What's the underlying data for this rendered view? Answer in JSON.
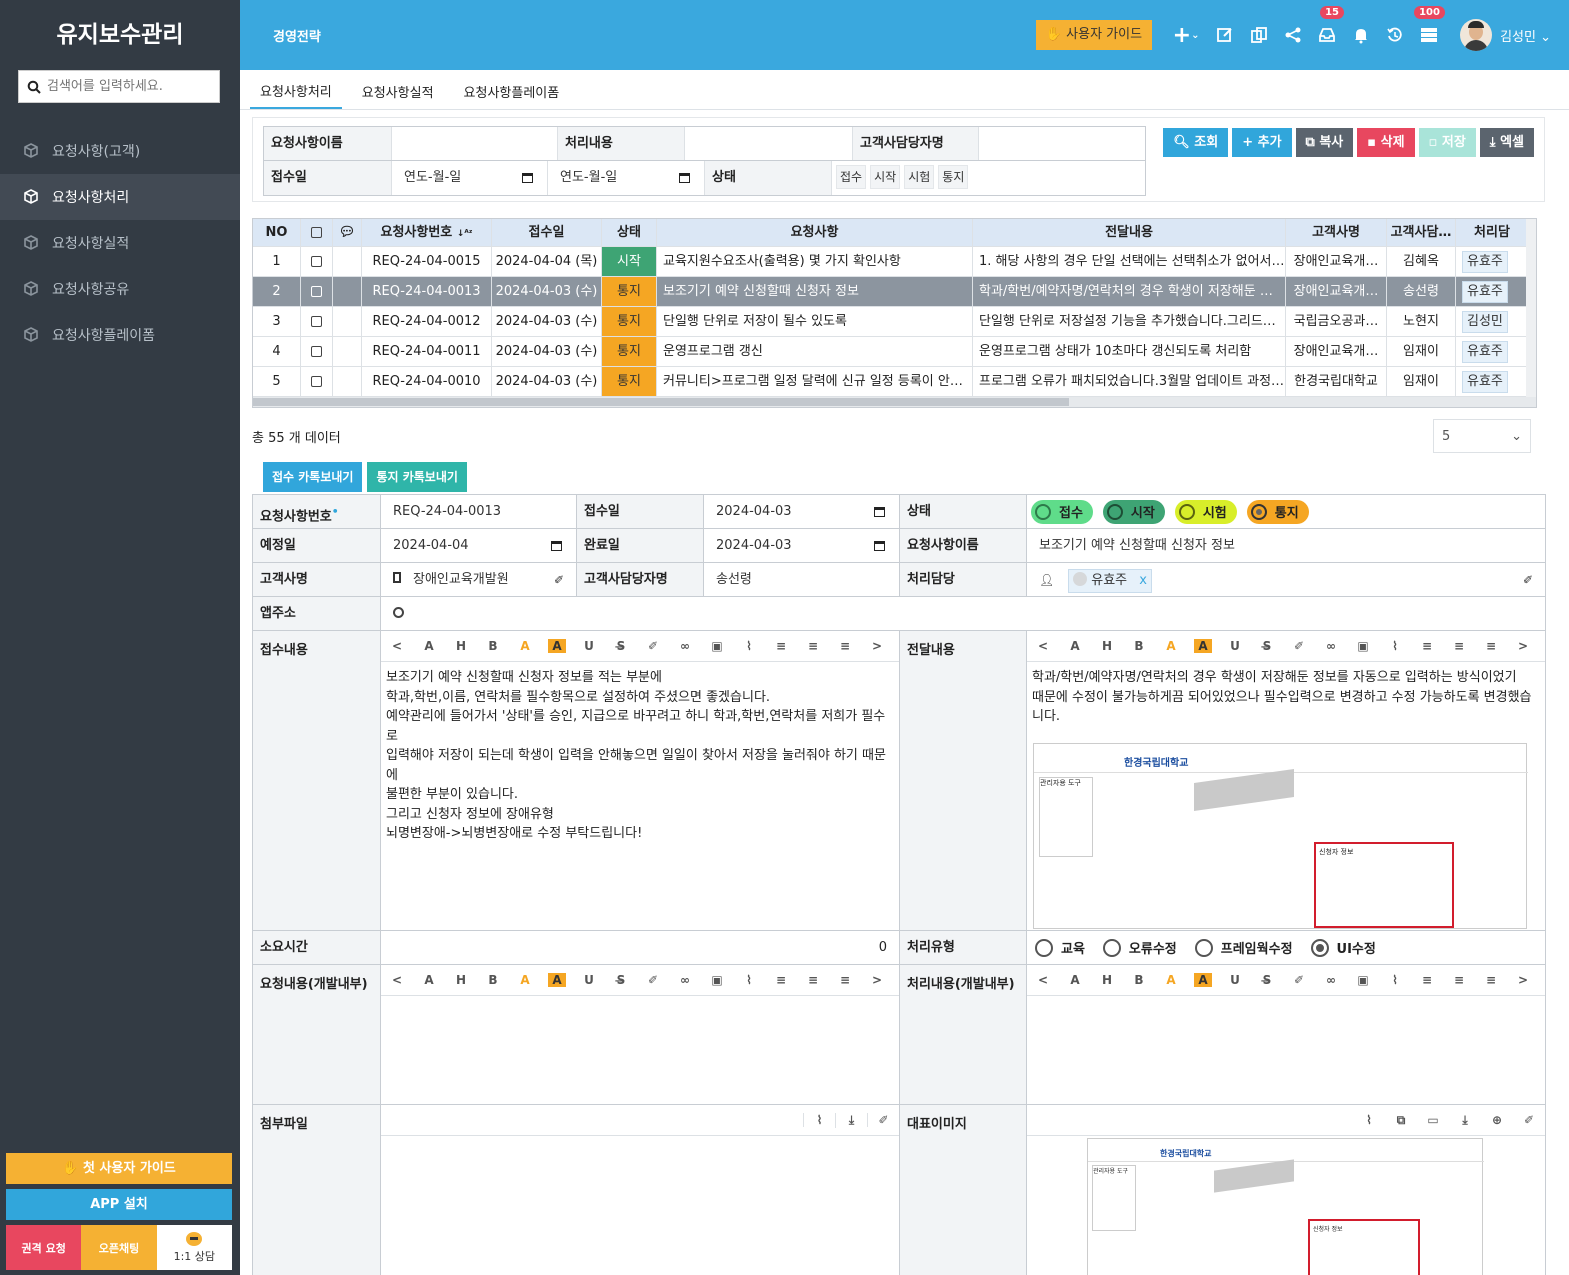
{
  "brand": "유지보수관리",
  "search": {
    "placeholder": "검색어를 입력하세요."
  },
  "menu": [
    "요청사항(고객)",
    "요청사항처리",
    "요청사항실적",
    "요청사항공유",
    "요청사항플레이폼"
  ],
  "sidebar_bottom": {
    "guide": "첫 사용자 가이드",
    "app": "APP 설치",
    "auth": "권격 요청",
    "open": "오픈채팅",
    "chat": "1:1 상담"
  },
  "header": {
    "title": "경영전략",
    "guide": "사용자 가이드",
    "badge_inbox": "15",
    "badge_list": "100",
    "user": "김성민"
  },
  "tabs": [
    "요청사항처리",
    "요청사항실적",
    "요청사항플레이폼"
  ],
  "filter": {
    "l_name": "요청사항이름",
    "l_content": "처리내용",
    "l_manager": "고객사담당자명",
    "l_date": "접수일",
    "date_ph": "연도-월-일",
    "l_status": "상태",
    "statuses": [
      "접수",
      "시작",
      "시험",
      "통지"
    ]
  },
  "buttons": {
    "search": "조회",
    "add": "추가",
    "copy": "복사",
    "delete": "삭제",
    "save": "저장",
    "excel": "엑셀"
  },
  "grid": {
    "headers": [
      "NO",
      "",
      "",
      "요청사항번호",
      "접수일",
      "상태",
      "요청사항",
      "전달내용",
      "고객사명",
      "고객사담…",
      "처리담"
    ],
    "rows": [
      {
        "no": "1",
        "id": "REQ-24-04-0015",
        "date": "2024-04-04 (목)",
        "status": "시작",
        "req": "교육지원수요조사(출력용) 몇 가지 확인사항",
        "msg": "1. 해당 사항의 경우 단일 선택에는 선택취소가 없어서…",
        "cust": "장애인교육개…",
        "mgr": "김혜옥",
        "worker": "유효주"
      },
      {
        "no": "2",
        "id": "REQ-24-04-0013",
        "date": "2024-04-03 (수)",
        "status": "통지",
        "req": "보조기기 예약 신청할때 신청자 정보",
        "msg": "학과/학번/예약자명/연락처의 경우 학생이 저장해둔 …",
        "cust": "장애인교육개…",
        "mgr": "송선령",
        "worker": "유효주"
      },
      {
        "no": "3",
        "id": "REQ-24-04-0012",
        "date": "2024-04-03 (수)",
        "status": "통지",
        "req": "단일행 단위로 저장이 될수 있도록",
        "msg": "단일행 단위로 저장설정 기능을 추가했습니다.그리드…",
        "cust": "국립금오공과…",
        "mgr": "노현지",
        "worker": "김성민"
      },
      {
        "no": "4",
        "id": "REQ-24-04-0011",
        "date": "2024-04-03 (수)",
        "status": "통지",
        "req": "운영프로그램 갱신",
        "msg": "운영프로그램 상태가 10초마다 갱신되도록 처리함",
        "cust": "장애인교육개…",
        "mgr": "임재이",
        "worker": "유효주"
      },
      {
        "no": "5",
        "id": "REQ-24-04-0010",
        "date": "2024-04-03 (수)",
        "status": "통지",
        "req": "커뮤니티>프로그램 일정 달력에 신규 일정 등록이 안…",
        "msg": "프로그램 오류가 패치되었습니다.3월말 업데이트 과정…",
        "cust": "한경국립대학교",
        "mgr": "임재이",
        "worker": "유효주"
      }
    ]
  },
  "total": "총 55 개 데이터",
  "page_size": "5",
  "kakao": {
    "receive": "접수 카톡보내기",
    "notify": "통지 카톡보내기"
  },
  "form": {
    "l_no": "요청사항번호",
    "no": "REQ-24-04-0013",
    "l_recv": "접수일",
    "recv": "2024-04-03",
    "l_status": "상태",
    "status_opts": [
      "접수",
      "시작",
      "시험",
      "통지"
    ],
    "l_plan": "예정일",
    "plan": "2024-04-04",
    "l_done": "완료일",
    "done": "2024-04-03",
    "l_reqname": "요청사항이름",
    "reqname": "보조기기 예약 신청할때 신청자 정보",
    "l_cust": "고객사명",
    "cust": "장애인교육개발원",
    "l_custmgr": "고객사담당자명",
    "custmgr": "송선령",
    "l_worker": "처리담당",
    "worker": "유효주",
    "l_app": "앱주소",
    "l_recvcontent": "접수내용",
    "recvcontent": [
      "보조기기 예약 신청할때 신청자 정보를 적는 부분에",
      "학과,학번,이름, 연락처를 필수항목으로 설정하여 주셨으면 좋겠습니다.",
      "예약관리에 들어가서 '상태'를 승인, 지급으로 바꾸려고 하니 학과,학번,연락처를 저희가 필수로",
      "입력해야 저장이 되는데 학생이 입력을 안해놓으면 일일이 찾아서 저장을 눌러줘야 하기 때문에",
      "불편한 부분이 있습니다.",
      "그리고 신청자 정보에 장애유형",
      "뇌명변장애->뇌병변장애로 수정 부탁드립니다!"
    ],
    "l_deliver": "전달내용",
    "deliver": [
      "학과/학번/예약자명/연락처의 경우 학생이 저장해둔 정보를 자동으로 입력하는 방식이었기",
      "때문에 수정이 불가능하게끔 되어있었으나 필수입력으로 변경하고 수정 가능하도록 변경했습",
      "니다."
    ],
    "l_time": "소요시간",
    "time": "0",
    "l_type": "처리유형",
    "types": [
      "교육",
      "오류수정",
      "프레임웍수정",
      "UI수정"
    ],
    "l_devreq": "요청내용(개발내부)",
    "l_devproc": "처리내용(개발내부)",
    "l_attach": "첨부파일",
    "l_image": "대표이미지"
  },
  "shot": {
    "univ": "한경국립대학교",
    "panel": "관리자용 도구",
    "form": "신청자 정보"
  },
  "colors": {
    "sidebar": "#333b44",
    "header": "#3aa8de",
    "accent": "#f5b133",
    "start": "#3ea474",
    "done": "#f5a623"
  }
}
